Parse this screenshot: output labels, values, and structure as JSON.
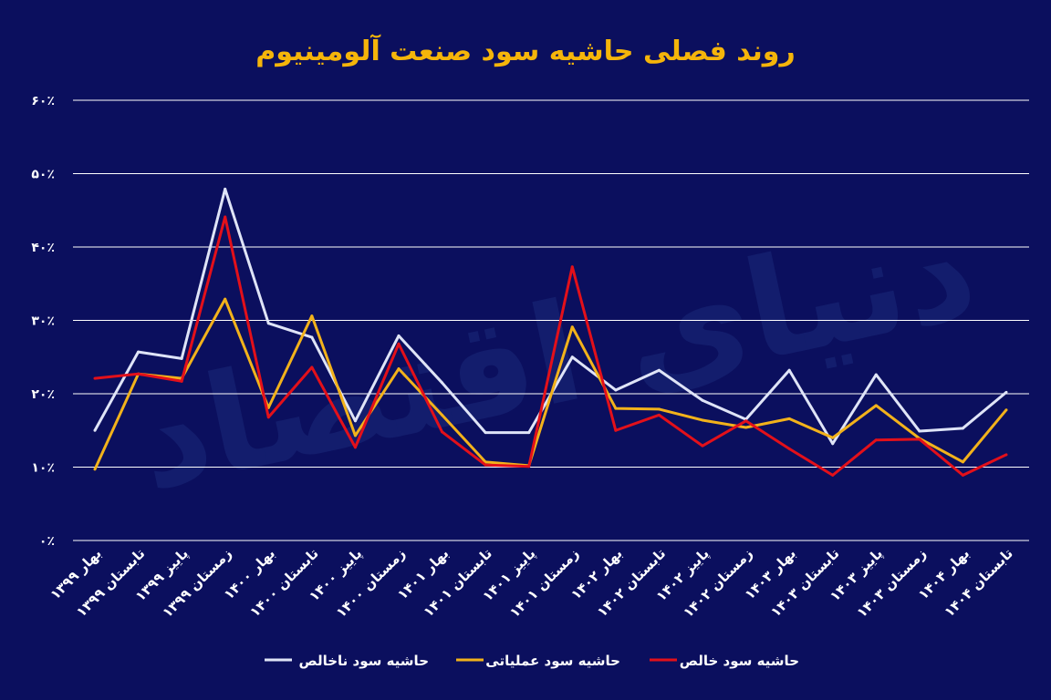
{
  "chart_data": {
    "type": "line",
    "title": "روند فصلی حاشیه سود صنعت آلومینیوم",
    "watermark": "دنیای اقتصاد",
    "ylim": [
      0,
      60
    ],
    "yticks": [
      0,
      10,
      20,
      30,
      40,
      50,
      60
    ],
    "ytick_labels": [
      "۰٪",
      "۱۰٪",
      "۲۰٪",
      "۳۰٪",
      "۴۰٪",
      "۵۰٪",
      "۶۰٪"
    ],
    "grid": true,
    "legend_position": "bottom",
    "categories": [
      "بهار ۱۳۹۹",
      "تابستان ۱۳۹۹",
      "پاییز ۱۳۹۹",
      "زمستان ۱۳۹۹",
      "بهار ۱۴۰۰",
      "تابستان ۱۴۰۰",
      "پاییز ۱۴۰۰",
      "زمستان ۱۴۰۰",
      "بهار ۱۴۰۱",
      "تابستان ۱۴۰۱",
      "پاییز ۱۴۰۱",
      "زمستان ۱۴۰۱",
      "بهار ۱۴۰۲",
      "تابستان ۱۴۰۲",
      "پاییز ۱۴۰۲",
      "زمستان ۱۴۰۲",
      "بهار ۱۴۰۳",
      "تابستان ۱۴۰۳",
      "پاییز ۱۴۰۳",
      "زمستان ۱۴۰۳",
      "بهار ۱۴۰۴",
      "تابستان ۱۴۰۴"
    ],
    "series": [
      {
        "name": "حاشیه سود ناخالص",
        "color": "#dfe4f7",
        "values": [
          15.0,
          25.7,
          24.8,
          47.9,
          29.6,
          27.7,
          16.3,
          27.9,
          21.5,
          14.7,
          14.7,
          25.0,
          20.5,
          23.2,
          19.1,
          16.5,
          23.2,
          13.2,
          22.6,
          14.9,
          15.3,
          20.2
        ]
      },
      {
        "name": "حاشیه سود عملیاتی",
        "color": "#f2b21b",
        "values": [
          9.7,
          22.7,
          22.1,
          32.9,
          18.1,
          30.6,
          14.3,
          23.4,
          17.1,
          10.7,
          10.2,
          29.1,
          18.0,
          17.9,
          16.4,
          15.4,
          16.6,
          14.0,
          18.4,
          13.9,
          10.7,
          17.8
        ]
      },
      {
        "name": "حاشیه سود خالص",
        "color": "#e3101a",
        "values": [
          22.1,
          22.7,
          21.7,
          44.1,
          16.8,
          23.6,
          12.7,
          26.8,
          14.8,
          10.3,
          10.1,
          37.3,
          15.0,
          17.1,
          12.9,
          16.3,
          12.5,
          8.9,
          13.7,
          13.8,
          8.9,
          11.7
        ]
      }
    ]
  }
}
